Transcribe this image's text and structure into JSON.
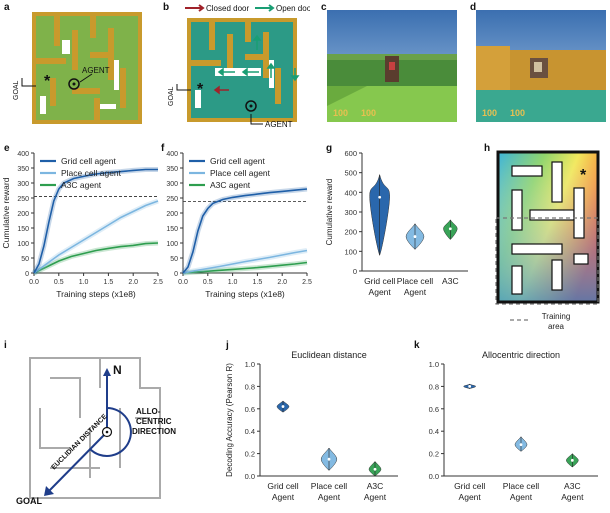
{
  "panels": {
    "a": {
      "label": "a",
      "goal_text": "GOAL",
      "agent_text": "AGENT"
    },
    "b": {
      "label": "b",
      "legend_closed": "Closed door",
      "legend_open": "Open door",
      "goal_text": "GOAL",
      "agent_text": "AGENT"
    },
    "c": {
      "label": "c",
      "hud_left": "100",
      "hud_right": "100"
    },
    "d": {
      "label": "d",
      "hud_left": "100",
      "hud_right": "100"
    },
    "e": {
      "label": "e"
    },
    "f": {
      "label": "f"
    },
    "g": {
      "label": "g"
    },
    "h": {
      "label": "h",
      "training_area": "Training area"
    },
    "i": {
      "label": "i",
      "north": "N",
      "euclid": "EUCLIDIAN DISTANCE",
      "allo_1": "ALLO-",
      "allo_2": "CENTRIC",
      "allo_3": "DIRECTION",
      "goal": "GOAL"
    },
    "j": {
      "label": "j"
    },
    "k": {
      "label": "k"
    }
  },
  "chart_data": [
    {
      "id": "e",
      "type": "line",
      "xlabel": "Training steps (x1e8)",
      "ylabel": "Cumulative reward",
      "xlim": [
        0,
        2.5
      ],
      "ylim": [
        0,
        400
      ],
      "xticks": [
        "0.0",
        "0.5",
        "1.0",
        "1.5",
        "2.0",
        "2.5"
      ],
      "yticks": [
        "0",
        "50",
        "100",
        "150",
        "200",
        "250",
        "300",
        "350",
        "400"
      ],
      "reference_line": 255,
      "legend_position": "top-left",
      "series": [
        {
          "name": "Grid cell agent",
          "color": "#1f5fa8",
          "x": [
            0,
            0.1,
            0.2,
            0.3,
            0.4,
            0.5,
            0.6,
            0.8,
            1.0,
            1.25,
            1.5,
            1.75,
            2.0,
            2.25,
            2.5
          ],
          "y": [
            0,
            30,
            90,
            170,
            240,
            280,
            300,
            315,
            322,
            330,
            335,
            338,
            342,
            345,
            345
          ]
        },
        {
          "name": "Place cell agent",
          "color": "#7cb6e0",
          "x": [
            0,
            0.25,
            0.5,
            0.75,
            1.0,
            1.25,
            1.5,
            1.75,
            2.0,
            2.25,
            2.5
          ],
          "y": [
            0,
            30,
            60,
            85,
            110,
            135,
            160,
            185,
            205,
            225,
            240
          ]
        },
        {
          "name": "A3C agent",
          "color": "#2e9e4f",
          "x": [
            0,
            0.25,
            0.5,
            0.75,
            1.0,
            1.25,
            1.5,
            1.75,
            2.0,
            2.25,
            2.5
          ],
          "y": [
            0,
            20,
            40,
            55,
            65,
            75,
            82,
            88,
            92,
            98,
            100
          ]
        }
      ]
    },
    {
      "id": "f",
      "type": "line",
      "xlabel": "Training steps (x1e8)",
      "ylabel": "",
      "xlim": [
        0,
        2.5
      ],
      "ylim": [
        0,
        400
      ],
      "xticks": [
        "0.0",
        "0.5",
        "1.0",
        "1.5",
        "2.0",
        "2.5"
      ],
      "yticks": [
        "0",
        "50",
        "100",
        "150",
        "200",
        "250",
        "300",
        "350",
        "400"
      ],
      "reference_line": 238,
      "legend_position": "top-left",
      "series": [
        {
          "name": "Grid cell agent",
          "color": "#1f5fa8",
          "x": [
            0,
            0.1,
            0.2,
            0.3,
            0.4,
            0.5,
            0.6,
            0.8,
            1.0,
            1.25,
            1.5,
            1.75,
            2.0,
            2.25,
            2.5
          ],
          "y": [
            0,
            20,
            70,
            140,
            190,
            215,
            232,
            245,
            252,
            258,
            263,
            268,
            272,
            276,
            280
          ]
        },
        {
          "name": "Place cell agent",
          "color": "#7cb6e0",
          "x": [
            0,
            0.25,
            0.5,
            0.75,
            1.0,
            1.25,
            1.5,
            1.75,
            2.0,
            2.25,
            2.5
          ],
          "y": [
            0,
            8,
            15,
            22,
            30,
            38,
            45,
            52,
            60,
            68,
            75
          ]
        },
        {
          "name": "A3C agent",
          "color": "#2e9e4f",
          "x": [
            0,
            0.25,
            0.5,
            0.75,
            1.0,
            1.25,
            1.5,
            1.75,
            2.0,
            2.25,
            2.5
          ],
          "y": [
            0,
            3,
            6,
            9,
            12,
            15,
            18,
            22,
            26,
            30,
            35
          ]
        }
      ]
    },
    {
      "id": "g",
      "type": "violin",
      "ylabel": "Cumulative reward",
      "ylim": [
        0,
        600
      ],
      "yticks": [
        "0",
        "100",
        "200",
        "300",
        "400",
        "500",
        "600"
      ],
      "categories": [
        "Grid cell Agent",
        "Place cell Agent",
        "A3C"
      ],
      "colors": [
        "#1f5fa8",
        "#7cb6e0",
        "#2e9e4f"
      ],
      "values": [
        {
          "median": 375,
          "min": 80,
          "max": 490,
          "widest": 380
        },
        {
          "median": 175,
          "min": 110,
          "max": 240,
          "widest": 175
        },
        {
          "median": 215,
          "min": 160,
          "max": 260,
          "widest": 215
        }
      ]
    },
    {
      "id": "j",
      "type": "violin",
      "title": "Euclidean distance",
      "ylabel": "Decoding Accuracy (Pearson R)",
      "ylim": [
        0,
        1.0
      ],
      "yticks": [
        "0.0",
        "0.2",
        "0.4",
        "0.6",
        "0.8",
        "1.0"
      ],
      "categories": [
        "Grid cell Agent",
        "Place cell Agent",
        "A3C Agent"
      ],
      "colors": [
        "#1f5fa8",
        "#7cb6e0",
        "#2e9e4f"
      ],
      "values": [
        {
          "median": 0.62,
          "min": 0.57,
          "max": 0.67,
          "widest": 0.62
        },
        {
          "median": 0.15,
          "min": 0.05,
          "max": 0.25,
          "widest": 0.15
        },
        {
          "median": 0.06,
          "min": 0.0,
          "max": 0.13,
          "widest": 0.06
        }
      ]
    },
    {
      "id": "k",
      "type": "violin",
      "title": "Allocentric direction",
      "ylabel": "",
      "ylim": [
        0,
        1.0
      ],
      "yticks": [
        "0.0",
        "0.2",
        "0.4",
        "0.6",
        "0.8",
        "1.0"
      ],
      "categories": [
        "Grid cell Agent",
        "Place cell Agent",
        "A3C Agent"
      ],
      "colors": [
        "#1f5fa8",
        "#7cb6e0",
        "#2e9e4f"
      ],
      "values": [
        {
          "median": 0.8,
          "min": 0.78,
          "max": 0.82,
          "widest": 0.8
        },
        {
          "median": 0.28,
          "min": 0.22,
          "max": 0.35,
          "widest": 0.28
        },
        {
          "median": 0.14,
          "min": 0.08,
          "max": 0.2,
          "widest": 0.14
        }
      ]
    }
  ]
}
